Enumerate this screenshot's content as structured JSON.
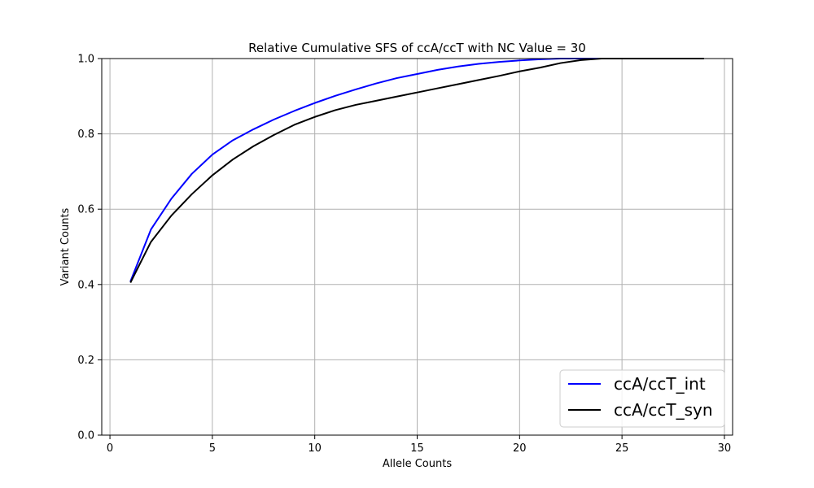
{
  "chart_data": {
    "type": "line",
    "title": "Relative Cumulative SFS of ccA/ccT with NC Value = 30",
    "xlabel": "Allele Counts",
    "ylabel": "Variant Counts",
    "xlim": [
      -0.4,
      30.4
    ],
    "ylim": [
      0.0,
      1.0
    ],
    "xticks": [
      0,
      5,
      10,
      15,
      20,
      25,
      30
    ],
    "yticks": [
      0.0,
      0.2,
      0.4,
      0.6,
      0.8,
      1.0
    ],
    "xtick_labels": [
      "0",
      "5",
      "10",
      "15",
      "20",
      "25",
      "30"
    ],
    "ytick_labels": [
      "0.0",
      "0.2",
      "0.4",
      "0.6",
      "0.8",
      "1.0"
    ],
    "grid": true,
    "legend_position": "lower-right",
    "x": [
      1,
      2,
      3,
      4,
      5,
      6,
      7,
      8,
      9,
      10,
      11,
      12,
      13,
      14,
      15,
      16,
      17,
      18,
      19,
      20,
      21,
      22,
      23,
      24,
      25,
      26,
      27,
      28,
      29
    ],
    "series": [
      {
        "name": "ccA/ccT_int",
        "color": "#0000ff",
        "values": [
          0.408,
          0.546,
          0.628,
          0.694,
          0.745,
          0.783,
          0.812,
          0.838,
          0.861,
          0.882,
          0.901,
          0.918,
          0.934,
          0.948,
          0.959,
          0.97,
          0.979,
          0.986,
          0.991,
          0.995,
          0.998,
          1.0,
          1.0,
          1.0,
          1.0,
          1.0,
          1.0,
          1.0,
          1.0
        ]
      },
      {
        "name": "ccA/ccT_syn",
        "color": "#000000",
        "values": [
          0.405,
          0.513,
          0.583,
          0.64,
          0.69,
          0.732,
          0.767,
          0.797,
          0.824,
          0.845,
          0.863,
          0.877,
          0.888,
          0.899,
          0.91,
          0.921,
          0.932,
          0.943,
          0.954,
          0.966,
          0.976,
          0.988,
          0.996,
          1.0,
          1.0,
          1.0,
          1.0,
          1.0,
          1.0
        ]
      }
    ]
  }
}
